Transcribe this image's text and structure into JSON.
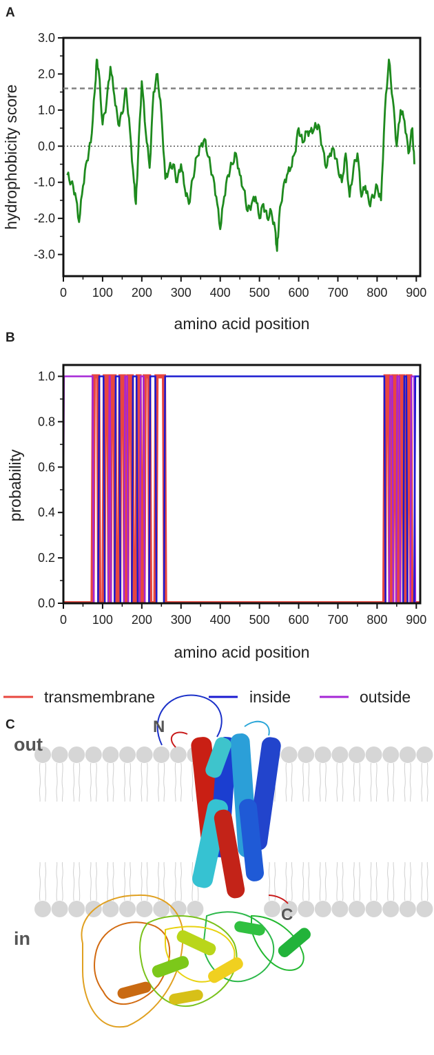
{
  "figure": {
    "panels": {
      "a": "A",
      "b": "B",
      "c": "C"
    }
  },
  "chart_data": [
    {
      "type": "line",
      "panel": "A",
      "xlabel": "amino acid position",
      "ylabel": "hydrophobicity score",
      "xlim": [
        0,
        910
      ],
      "ylim": [
        -3.6,
        3.0
      ],
      "x_ticks": [
        0,
        100,
        200,
        300,
        400,
        500,
        600,
        700,
        800,
        900
      ],
      "x_tick_labels": [
        "0",
        "100",
        "200",
        "300",
        "400",
        "500",
        "600",
        "700",
        "800",
        "900"
      ],
      "y_ticks": [
        3.0,
        2.0,
        1.0,
        0.0,
        -1.0,
        -2.0,
        -3.0
      ],
      "y_tick_labels": [
        "3.0",
        "2.0",
        "1.0",
        "0.0",
        "-1.0",
        "-2.0",
        "-3.0"
      ],
      "grid": false,
      "reference_lines": [
        {
          "y": 1.6,
          "style": "dashed",
          "color": "#808080"
        },
        {
          "y": 0.0,
          "style": "dotted",
          "color": "#333333"
        }
      ],
      "series": [
        {
          "color": "#1e8a1e",
          "x": [
            10,
            20,
            30,
            40,
            50,
            60,
            70,
            80,
            85,
            90,
            100,
            110,
            120,
            130,
            140,
            150,
            160,
            170,
            180,
            185,
            190,
            200,
            210,
            220,
            230,
            240,
            250,
            260,
            270,
            280,
            290,
            300,
            310,
            320,
            330,
            340,
            350,
            360,
            370,
            380,
            390,
            400,
            410,
            420,
            430,
            440,
            450,
            460,
            470,
            480,
            490,
            500,
            510,
            520,
            530,
            540,
            545,
            550,
            560,
            570,
            580,
            590,
            600,
            610,
            620,
            630,
            640,
            650,
            660,
            670,
            680,
            690,
            700,
            710,
            720,
            730,
            740,
            750,
            760,
            770,
            780,
            790,
            800,
            810,
            820,
            830,
            840,
            850,
            860,
            870,
            880,
            890,
            895
          ],
          "y": [
            -0.8,
            -1.0,
            -1.3,
            -2.1,
            -1.1,
            -0.4,
            0.1,
            1.5,
            2.4,
            2.1,
            0.6,
            1.2,
            2.2,
            1.4,
            0.6,
            0.9,
            1.6,
            0.4,
            -1.0,
            -1.6,
            -0.4,
            1.8,
            0.4,
            -0.6,
            1.5,
            2.0,
            0.9,
            -0.9,
            -0.6,
            -0.5,
            -1.0,
            -0.5,
            -1.2,
            -1.6,
            -0.9,
            -0.3,
            0.0,
            0.2,
            -0.3,
            -0.8,
            -1.4,
            -2.3,
            -1.4,
            -0.8,
            -0.5,
            -0.2,
            -0.8,
            -1.2,
            -1.8,
            -1.6,
            -1.4,
            -2.0,
            -1.6,
            -2.0,
            -1.8,
            -2.3,
            -2.9,
            -2.0,
            -1.2,
            -0.8,
            -0.6,
            -0.2,
            0.5,
            0.1,
            0.4,
            0.4,
            0.5,
            0.6,
            0.0,
            -0.6,
            -0.2,
            -0.1,
            -0.6,
            -1.0,
            -0.2,
            -1.4,
            -0.6,
            -0.2,
            -1.4,
            -1.1,
            -1.6,
            -1.4,
            -1.1,
            -1.5,
            1.0,
            2.4,
            1.3,
            0.0,
            1.0,
            0.7,
            -0.2,
            0.5,
            -0.5
          ]
        }
      ]
    },
    {
      "type": "line",
      "panel": "B",
      "xlabel": "amino acid position",
      "ylabel": "probability",
      "xlim": [
        0,
        910
      ],
      "ylim": [
        0.0,
        1.05
      ],
      "x_ticks": [
        0,
        100,
        200,
        300,
        400,
        500,
        600,
        700,
        800,
        900
      ],
      "x_tick_labels": [
        "0",
        "100",
        "200",
        "300",
        "400",
        "500",
        "600",
        "700",
        "800",
        "900"
      ],
      "y_ticks": [
        1.0,
        0.8,
        0.6,
        0.4,
        0.2,
        0.0
      ],
      "y_tick_labels": [
        "1.0",
        "0.8",
        "0.6",
        "0.4",
        "0.2",
        "0.0"
      ],
      "grid": false,
      "legend": {
        "placement": "bottom",
        "entries": [
          {
            "label": "transmembrane",
            "color": "#e8473f"
          },
          {
            "label": "inside",
            "color": "#1a1ad0"
          },
          {
            "label": "outside",
            "color": "#a526d6"
          }
        ]
      },
      "transmembrane_segments": [
        [
          76,
          90
        ],
        [
          104,
          116
        ],
        [
          120,
          132
        ],
        [
          144,
          156
        ],
        [
          164,
          176
        ],
        [
          188,
          196
        ],
        [
          206,
          220
        ],
        [
          236,
          258
        ],
        [
          820,
          832
        ],
        [
          840,
          850
        ],
        [
          858,
          868
        ],
        [
          876,
          886
        ]
      ],
      "inside_segments": [
        [
          90,
          104
        ],
        [
          132,
          144
        ],
        [
          176,
          188
        ],
        [
          220,
          236
        ],
        [
          258,
          820
        ],
        [
          868,
          876
        ],
        [
          896,
          910
        ]
      ],
      "outside_segments": [
        [
          0,
          76
        ],
        [
          116,
          120
        ],
        [
          156,
          164
        ],
        [
          196,
          206
        ],
        [
          832,
          840
        ],
        [
          850,
          858
        ],
        [
          886,
          896
        ]
      ]
    }
  ],
  "structure_figure": {
    "labels": {
      "out": "out",
      "in": "in",
      "n_terminus": "N",
      "c_terminus": "C"
    },
    "colors": {
      "lipid": "#d6d6d6",
      "tail": "#cfcfcf"
    }
  }
}
